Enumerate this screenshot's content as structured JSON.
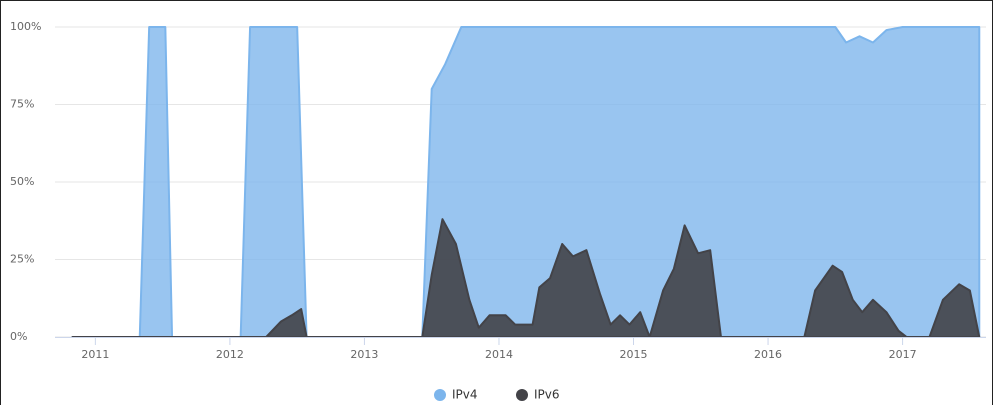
{
  "chart_data": {
    "type": "area",
    "xlim": [
      2010.7,
      2017.62
    ],
    "xticks": [
      2011,
      2012,
      2013,
      2014,
      2015,
      2016,
      2017
    ],
    "ylim": [
      0,
      100
    ],
    "yticks": [
      {
        "value": 0,
        "label": "0%"
      },
      {
        "value": 25,
        "label": "25%"
      },
      {
        "value": 50,
        "label": "50%"
      },
      {
        "value": 75,
        "label": "75%"
      },
      {
        "value": 100,
        "label": "100%"
      }
    ],
    "grid": true,
    "legend": "bottom",
    "series": [
      {
        "name": "IPv4",
        "color": "#7cb5ec",
        "x": [
          2010.83,
          2011.33,
          2011.4,
          2011.52,
          2011.57,
          2012.08,
          2012.15,
          2012.5,
          2012.57,
          2013.43,
          2013.5,
          2013.6,
          2013.72,
          2016.5,
          2016.58,
          2016.68,
          2016.78,
          2016.88,
          2017.0,
          2017.57
        ],
        "values": [
          0,
          0,
          100,
          100,
          0,
          0,
          100,
          100,
          0,
          0,
          80,
          88,
          100,
          100,
          95,
          97,
          95,
          99,
          100,
          100
        ]
      },
      {
        "name": "IPv6",
        "color": "#434348",
        "x": [
          2010.83,
          2012.27,
          2012.38,
          2012.46,
          2012.53,
          2012.57,
          2013.43,
          2013.5,
          2013.58,
          2013.68,
          2013.78,
          2013.85,
          2013.93,
          2014.05,
          2014.12,
          2014.25,
          2014.3,
          2014.38,
          2014.47,
          2014.55,
          2014.65,
          2014.75,
          2014.83,
          2014.9,
          2014.97,
          2015.05,
          2015.12,
          2015.22,
          2015.3,
          2015.38,
          2015.48,
          2015.57,
          2015.65,
          2016.27,
          2016.35,
          2016.48,
          2016.55,
          2016.63,
          2016.7,
          2016.78,
          2016.88,
          2016.97,
          2017.03,
          2017.2,
          2017.3,
          2017.42,
          2017.5,
          2017.57
        ],
        "values": [
          0,
          0,
          5,
          7,
          9,
          0,
          0,
          20,
          38,
          30,
          12,
          3,
          7,
          7,
          4,
          4,
          16,
          19,
          30,
          26,
          28,
          14,
          4,
          7,
          4,
          8,
          0,
          15,
          22,
          36,
          27,
          28,
          0,
          0,
          15,
          23,
          21,
          12,
          8,
          12,
          8,
          2,
          0,
          0,
          12,
          17,
          15,
          0
        ]
      }
    ]
  }
}
